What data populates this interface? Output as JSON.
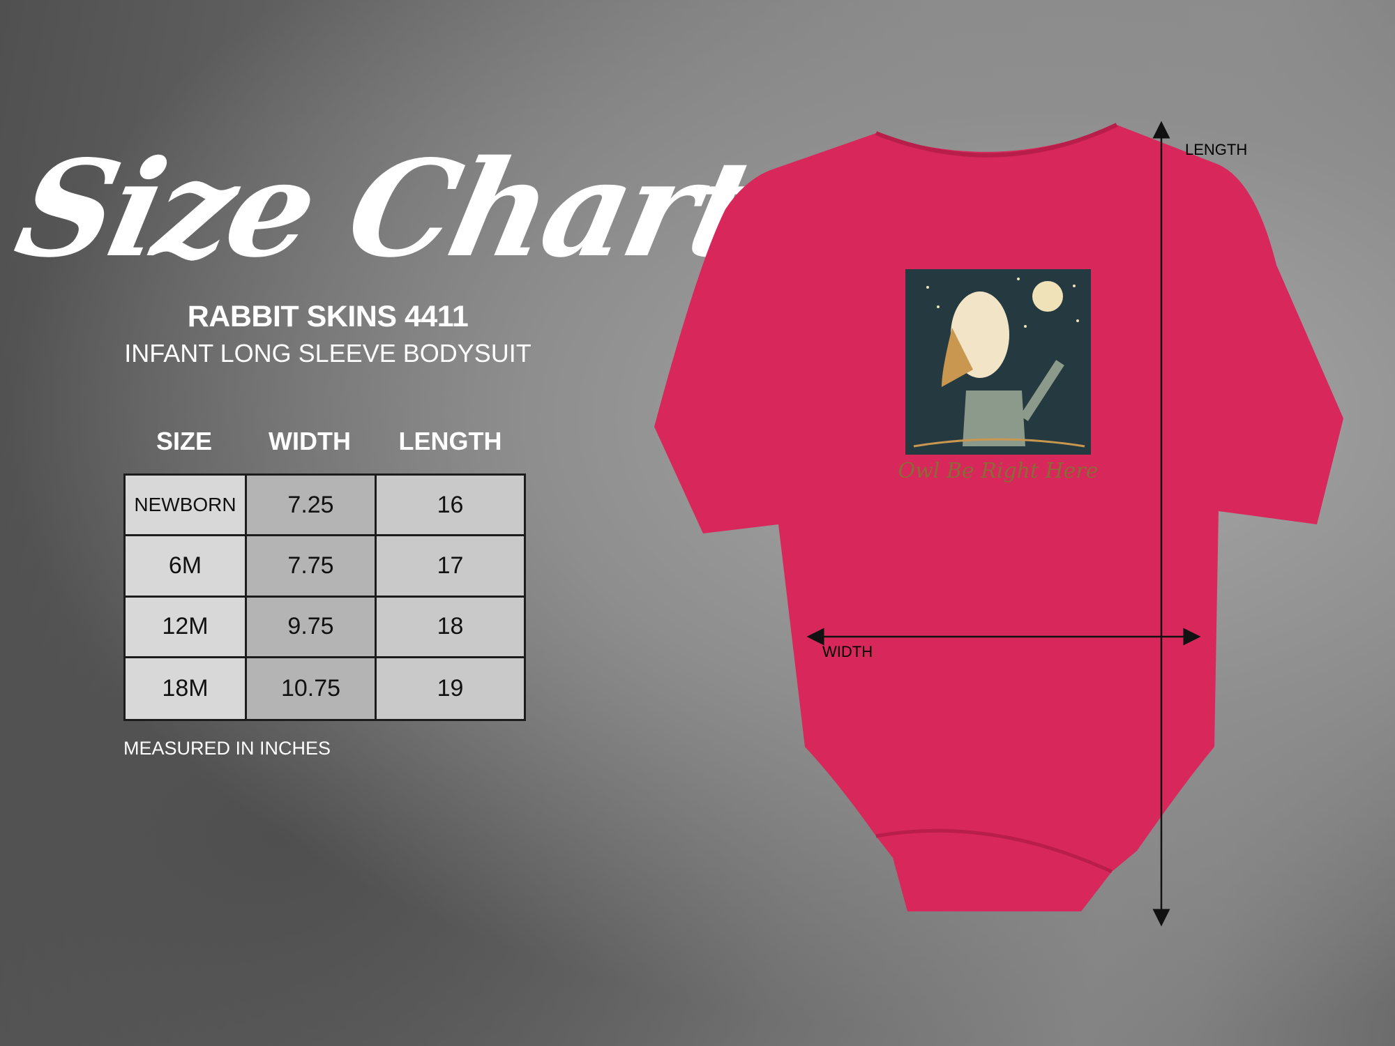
{
  "title": "Size Chart",
  "product": {
    "brand_model": "RABBIT SKINS 4411",
    "description": "INFANT LONG SLEEVE BODYSUIT"
  },
  "table": {
    "headers": [
      "SIZE",
      "WIDTH",
      "LENGTH"
    ],
    "rows": [
      [
        "NEWBORN",
        "7.25",
        "16"
      ],
      [
        "6M",
        "7.75",
        "17"
      ],
      [
        "12M",
        "9.75",
        "18"
      ],
      [
        "18M",
        "10.75",
        "19"
      ]
    ]
  },
  "note": "MEASURED IN INCHES",
  "garment": {
    "color": "#d8275a",
    "print_text": "Owl Be Right Here",
    "length_label": "LENGTH",
    "width_label": "WIDTH"
  }
}
